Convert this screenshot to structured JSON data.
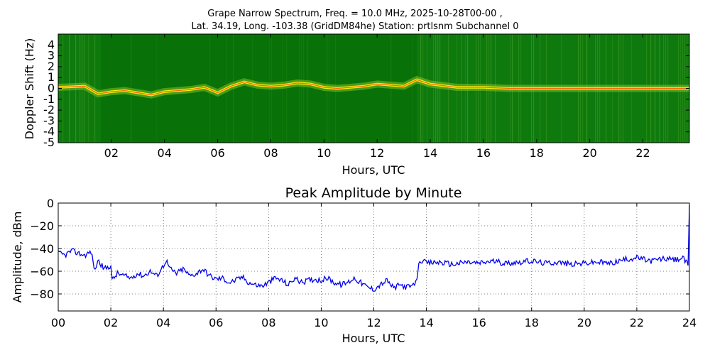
{
  "figure": {
    "title_line1": "Grape Narrow Spectrum, Freq. = 10.0 MHz, 2025-10-28T00-00 ,",
    "title_line2": "Lat.  34.19, Long. -103.38 (GridDM84he) Station: prtlsnm Subchannel 0"
  },
  "colors": {
    "spectrogram_bg": "#0e7a0e",
    "spectrogram_dark": "#036b03",
    "trace_mid": "#9bd12a",
    "trace_core": "#f2f20f",
    "trace_peak": "#ff2a00",
    "amplitude_line": "#0000ee",
    "grid": "#555555"
  },
  "chart_data": [
    {
      "type": "heatmap",
      "title": "",
      "xlabel": "Hours, UTC",
      "ylabel": "Doppler Shift (Hz)",
      "xlim": [
        0,
        23.75
      ],
      "ylim": [
        -5,
        5
      ],
      "x_ticks": [
        "02",
        "04",
        "06",
        "08",
        "10",
        "12",
        "14",
        "16",
        "18",
        "20",
        "22"
      ],
      "x_tick_values": [
        2,
        4,
        6,
        8,
        10,
        12,
        14,
        16,
        18,
        20,
        22
      ],
      "y_ticks": [
        "4",
        "3",
        "2",
        "1",
        "0",
        "-1",
        "-2",
        "-3",
        "-4",
        "-5"
      ],
      "y_tick_values": [
        4,
        3,
        2,
        1,
        0,
        -1,
        -2,
        -3,
        -4,
        -5
      ],
      "doppler_peak_trace": {
        "hours": [
          0,
          0.5,
          1,
          1.5,
          2,
          2.5,
          3,
          3.5,
          4,
          4.5,
          5,
          5.5,
          6,
          6.5,
          7,
          7.5,
          8,
          8.5,
          9,
          9.5,
          10,
          10.5,
          11,
          11.5,
          12,
          12.5,
          13,
          13.5,
          14,
          15,
          16,
          17,
          18,
          19,
          20,
          21,
          22,
          23,
          23.75
        ],
        "hz": [
          0.1,
          0.15,
          0.2,
          -0.5,
          -0.3,
          -0.2,
          -0.4,
          -0.6,
          -0.3,
          -0.2,
          -0.1,
          0.1,
          -0.4,
          0.2,
          0.6,
          0.3,
          0.2,
          0.3,
          0.5,
          0.4,
          0.1,
          0.0,
          0.1,
          0.2,
          0.4,
          0.3,
          0.2,
          0.8,
          0.4,
          0.1,
          0.1,
          0.0,
          0.0,
          0.0,
          0.0,
          0.0,
          0.0,
          0.0,
          0.0
        ]
      }
    },
    {
      "type": "line",
      "title": "Peak Amplitude by Minute",
      "xlabel": "Hours, UTC",
      "ylabel": "Amplitude, dBm",
      "xlim": [
        0,
        24
      ],
      "ylim": [
        -95,
        0
      ],
      "grid": true,
      "x_ticks": [
        "00",
        "02",
        "04",
        "06",
        "08",
        "10",
        "12",
        "14",
        "16",
        "18",
        "20",
        "22",
        "24"
      ],
      "x_tick_values": [
        0,
        2,
        4,
        6,
        8,
        10,
        12,
        14,
        16,
        18,
        20,
        22,
        24
      ],
      "y_ticks": [
        "0",
        "−20",
        "−40",
        "−60",
        "−80"
      ],
      "y_tick_values": [
        0,
        -20,
        -40,
        -60,
        -80
      ],
      "series": [
        {
          "x": [
            0,
            0.25,
            0.5,
            0.75,
            1,
            1.25,
            1.4,
            1.5,
            1.75,
            2,
            2.05,
            2.25,
            2.5,
            2.75,
            3,
            3.25,
            3.5,
            3.75,
            4,
            4.1,
            4.25,
            4.5,
            4.75,
            5,
            5.25,
            5.5,
            5.75,
            6,
            6.25,
            6.5,
            6.75,
            7,
            7.25,
            7.5,
            7.75,
            8,
            8.25,
            8.5,
            8.75,
            9,
            9.25,
            9.5,
            9.75,
            10,
            10.25,
            10.5,
            10.75,
            11,
            11.25,
            11.5,
            11.75,
            12,
            12.25,
            12.5,
            12.75,
            13,
            13.25,
            13.5,
            13.6,
            13.75,
            14,
            14.5,
            15,
            15.5,
            16,
            16.5,
            17,
            17.5,
            18,
            18.5,
            19,
            19.5,
            20,
            20.5,
            21,
            21.5,
            22,
            22.5,
            23,
            23.5,
            23.75,
            23.95,
            24
          ],
          "y": [
            -44,
            -46,
            -42,
            -44,
            -46,
            -43,
            -60,
            -50,
            -58,
            -55,
            -68,
            -62,
            -64,
            -66,
            -62,
            -64,
            -60,
            -64,
            -55,
            -50,
            -58,
            -62,
            -58,
            -64,
            -62,
            -58,
            -64,
            -67,
            -66,
            -70,
            -68,
            -65,
            -70,
            -72,
            -73,
            -70,
            -66,
            -68,
            -72,
            -66,
            -70,
            -68,
            -67,
            -68,
            -66,
            -70,
            -72,
            -70,
            -66,
            -70,
            -74,
            -76,
            -72,
            -68,
            -75,
            -72,
            -74,
            -73,
            -70,
            -50,
            -53,
            -52,
            -54,
            -52,
            -53,
            -51,
            -53,
            -52,
            -51,
            -53,
            -52,
            -54,
            -53,
            -52,
            -53,
            -50,
            -48,
            -51,
            -49,
            -50,
            -48,
            -55,
            -2
          ]
        }
      ]
    }
  ]
}
